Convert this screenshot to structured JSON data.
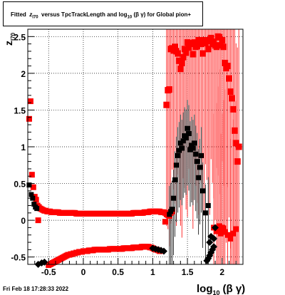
{
  "title": {
    "prefix": "Fitted",
    "var": "z",
    "var_sub": "I70",
    "mid": "versus TpcTrackLength and log",
    "log_sub": "10",
    "tail": "(β γ) for Global pion+"
  },
  "axes": {
    "x_label": "log",
    "x_label_sub": "10",
    "x_label_tail": "(β γ)",
    "y_label": "z",
    "y_label_sub": "I70"
  },
  "timestamp": "Fri Feb 18 17:28:33 2022",
  "colors": {
    "red": "#ff0000",
    "black": "#000000",
    "grid": "#000000"
  },
  "chart_data": {
    "type": "scatter",
    "title": "Fitted z_I70 versus TpcTrackLength and log10(β γ) for Global pion+",
    "xlabel": "log10(β γ)",
    "ylabel": "z_I70",
    "xlim": [
      -0.8,
      2.3
    ],
    "ylim": [
      -0.6,
      2.6
    ],
    "grid": true,
    "x_ticks": [
      -0.5,
      0,
      0.5,
      1,
      1.5,
      2
    ],
    "x_tick_labels": [
      "-0.5",
      "0",
      "0.5",
      "1",
      "1.5",
      "2"
    ],
    "y_ticks": [
      -0.5,
      0,
      0.5,
      1,
      1.5,
      2,
      2.5
    ],
    "y_tick_labels": [
      "-0.5",
      "0",
      "0.5",
      "1",
      "1.5",
      "2",
      "2.5"
    ],
    "series": [
      {
        "marker": "red-square-upper",
        "points": [
          [
            -0.78,
            1.38
          ],
          [
            -0.76,
            1.62
          ],
          [
            -0.74,
            0.62
          ],
          [
            -0.72,
            0.45
          ],
          [
            -0.7,
            0.32
          ],
          [
            -0.68,
            0.28
          ],
          [
            -0.66,
            0.2
          ],
          [
            -0.64,
            0.18
          ],
          [
            -0.62,
            0.16
          ],
          [
            -0.6,
            0.15
          ],
          [
            -0.58,
            0.14
          ],
          [
            -0.56,
            0.13
          ],
          [
            -0.54,
            0.13
          ],
          [
            -0.52,
            0.12
          ],
          [
            -0.5,
            0.12
          ],
          [
            -0.48,
            0.12
          ],
          [
            -0.46,
            0.11
          ],
          [
            -0.44,
            0.11
          ],
          [
            -0.42,
            0.11
          ],
          [
            -0.4,
            0.11
          ],
          [
            -0.38,
            0.11
          ],
          [
            -0.36,
            0.11
          ],
          [
            -0.34,
            0.1
          ],
          [
            -0.32,
            0.1
          ],
          [
            -0.3,
            0.1
          ],
          [
            -0.28,
            0.1
          ],
          [
            -0.26,
            0.1
          ],
          [
            -0.24,
            0.1
          ],
          [
            -0.22,
            0.1
          ],
          [
            -0.2,
            0.1
          ],
          [
            -0.18,
            0.1
          ],
          [
            -0.16,
            0.1
          ],
          [
            -0.14,
            0.1
          ],
          [
            -0.12,
            0.1
          ],
          [
            -0.1,
            0.09
          ],
          [
            -0.08,
            0.09
          ],
          [
            -0.06,
            0.09
          ],
          [
            -0.04,
            0.09
          ],
          [
            -0.02,
            0.09
          ],
          [
            0.0,
            0.09
          ],
          [
            0.02,
            0.09
          ],
          [
            0.04,
            0.09
          ],
          [
            0.06,
            0.09
          ],
          [
            0.08,
            0.09
          ],
          [
            0.1,
            0.09
          ],
          [
            0.12,
            0.09
          ],
          [
            0.14,
            0.09
          ],
          [
            0.16,
            0.09
          ],
          [
            0.18,
            0.09
          ],
          [
            0.2,
            0.09
          ],
          [
            0.22,
            0.09
          ],
          [
            0.24,
            0.09
          ],
          [
            0.26,
            0.09
          ],
          [
            0.28,
            0.09
          ],
          [
            0.3,
            0.09
          ],
          [
            0.32,
            0.09
          ],
          [
            0.34,
            0.09
          ],
          [
            0.36,
            0.09
          ],
          [
            0.38,
            0.09
          ],
          [
            0.4,
            0.09
          ],
          [
            0.42,
            0.09
          ],
          [
            0.44,
            0.09
          ],
          [
            0.46,
            0.09
          ],
          [
            0.48,
            0.09
          ],
          [
            0.5,
            0.09
          ],
          [
            0.52,
            0.09
          ],
          [
            0.54,
            0.09
          ],
          [
            0.56,
            0.09
          ],
          [
            0.58,
            0.09
          ],
          [
            0.6,
            0.09
          ],
          [
            0.62,
            0.09
          ],
          [
            0.64,
            0.09
          ],
          [
            0.66,
            0.09
          ],
          [
            0.68,
            0.09
          ],
          [
            0.7,
            0.09
          ],
          [
            0.72,
            0.1
          ],
          [
            0.74,
            0.1
          ],
          [
            0.76,
            0.1
          ],
          [
            0.78,
            0.1
          ],
          [
            0.8,
            0.1
          ],
          [
            0.82,
            0.1
          ],
          [
            0.84,
            0.1
          ],
          [
            0.86,
            0.1
          ],
          [
            0.88,
            0.11
          ],
          [
            0.9,
            0.11
          ],
          [
            0.92,
            0.11
          ],
          [
            0.94,
            0.11
          ],
          [
            0.96,
            0.12
          ],
          [
            0.98,
            0.12
          ],
          [
            1.0,
            0.12
          ],
          [
            1.02,
            0.12
          ],
          [
            1.04,
            0.12
          ],
          [
            1.06,
            0.12
          ],
          [
            1.08,
            0.12
          ],
          [
            1.1,
            0.12
          ],
          [
            1.12,
            0.11
          ],
          [
            1.14,
            0.11
          ],
          [
            1.16,
            0.11
          ],
          [
            1.18,
            0.1
          ],
          [
            1.2,
            0.08
          ],
          [
            1.22,
            0.07
          ],
          [
            1.24,
            0.06
          ],
          [
            1.26,
            0.1
          ],
          [
            1.28,
            0.12
          ],
          [
            -0.65,
            0.0
          ],
          [
            1.18,
            -0.02
          ]
        ]
      },
      {
        "marker": "red-square-outlier",
        "points": [
          [
            1.2,
            1.57
          ],
          [
            1.22,
            1.77
          ],
          [
            1.24,
            1.78
          ],
          [
            1.26,
            2.33
          ],
          [
            1.28,
            2.34
          ],
          [
            1.3,
            2.31
          ],
          [
            1.32,
            2.36
          ],
          [
            1.34,
            2.3
          ],
          [
            1.36,
            2.27
          ],
          [
            1.38,
            2.17
          ],
          [
            1.4,
            2.06
          ],
          [
            1.42,
            2.14
          ],
          [
            1.44,
            2.22
          ],
          [
            1.46,
            2.33
          ],
          [
            1.48,
            2.28
          ],
          [
            1.5,
            2.42
          ],
          [
            1.52,
            2.35
          ],
          [
            1.54,
            2.4
          ],
          [
            1.56,
            2.41
          ],
          [
            1.58,
            2.26
          ],
          [
            1.6,
            2.42
          ],
          [
            1.62,
            2.36
          ],
          [
            1.64,
            2.37
          ],
          [
            1.66,
            2.45
          ],
          [
            1.68,
            2.44
          ],
          [
            1.7,
            2.4
          ],
          [
            1.72,
            2.27
          ],
          [
            1.74,
            2.45
          ],
          [
            1.76,
            2.41
          ],
          [
            1.78,
            2.44
          ],
          [
            1.8,
            2.33
          ],
          [
            1.82,
            2.45
          ],
          [
            1.84,
            2.48
          ],
          [
            1.86,
            2.4
          ],
          [
            1.88,
            2.43
          ],
          [
            1.9,
            2.38
          ],
          [
            1.92,
            2.36
          ],
          [
            1.94,
            2.5
          ],
          [
            1.96,
            2.49
          ],
          [
            1.98,
            2.38
          ],
          [
            2.0,
            2.45
          ],
          [
            2.02,
            2.36
          ],
          [
            2.04,
            2.14
          ],
          [
            2.06,
            2.07
          ],
          [
            2.08,
            2.1
          ],
          [
            2.1,
            1.93
          ],
          [
            2.12,
            1.75
          ],
          [
            2.14,
            1.66
          ],
          [
            2.16,
            1.51
          ],
          [
            2.18,
            1.22
          ],
          [
            2.2,
            1.05
          ],
          [
            2.22,
            0.8
          ],
          [
            2.24,
            1.0
          ]
        ]
      },
      {
        "marker": "red-square-lower",
        "points": [
          [
            -0.5,
            -0.61
          ],
          [
            -0.48,
            -0.6
          ],
          [
            -0.46,
            -0.59
          ],
          [
            -0.44,
            -0.58
          ],
          [
            -0.42,
            -0.57
          ],
          [
            -0.4,
            -0.56
          ],
          [
            -0.38,
            -0.55
          ],
          [
            -0.36,
            -0.54
          ],
          [
            -0.34,
            -0.53
          ],
          [
            -0.32,
            -0.52
          ],
          [
            -0.3,
            -0.51
          ],
          [
            -0.28,
            -0.5
          ],
          [
            -0.26,
            -0.49
          ],
          [
            -0.24,
            -0.48
          ],
          [
            -0.22,
            -0.47
          ],
          [
            -0.2,
            -0.47
          ],
          [
            -0.18,
            -0.46
          ],
          [
            -0.16,
            -0.46
          ],
          [
            -0.14,
            -0.45
          ],
          [
            -0.12,
            -0.45
          ],
          [
            -0.1,
            -0.44
          ],
          [
            -0.08,
            -0.44
          ],
          [
            -0.06,
            -0.43
          ],
          [
            -0.04,
            -0.43
          ],
          [
            -0.02,
            -0.43
          ],
          [
            0.0,
            -0.42
          ],
          [
            0.02,
            -0.42
          ],
          [
            0.04,
            -0.42
          ],
          [
            0.06,
            -0.42
          ],
          [
            0.08,
            -0.41
          ],
          [
            0.1,
            -0.41
          ],
          [
            0.12,
            -0.41
          ],
          [
            0.14,
            -0.41
          ],
          [
            0.16,
            -0.4
          ],
          [
            0.18,
            -0.4
          ],
          [
            0.2,
            -0.4
          ],
          [
            0.22,
            -0.4
          ],
          [
            0.24,
            -0.4
          ],
          [
            0.26,
            -0.4
          ],
          [
            0.28,
            -0.4
          ],
          [
            0.3,
            -0.4
          ],
          [
            0.32,
            -0.4
          ],
          [
            0.34,
            -0.4
          ],
          [
            0.36,
            -0.4
          ],
          [
            0.38,
            -0.39
          ],
          [
            0.4,
            -0.39
          ],
          [
            0.42,
            -0.39
          ],
          [
            0.44,
            -0.39
          ],
          [
            0.46,
            -0.39
          ],
          [
            0.48,
            -0.39
          ],
          [
            0.5,
            -0.39
          ],
          [
            0.52,
            -0.39
          ],
          [
            0.54,
            -0.39
          ],
          [
            0.56,
            -0.39
          ],
          [
            0.58,
            -0.38
          ],
          [
            0.6,
            -0.38
          ],
          [
            0.62,
            -0.38
          ],
          [
            0.64,
            -0.38
          ],
          [
            0.66,
            -0.38
          ],
          [
            0.68,
            -0.38
          ],
          [
            0.7,
            -0.38
          ],
          [
            0.72,
            -0.37
          ],
          [
            0.74,
            -0.37
          ],
          [
            0.76,
            -0.37
          ],
          [
            0.78,
            -0.37
          ],
          [
            0.8,
            -0.37
          ],
          [
            0.82,
            -0.37
          ],
          [
            0.84,
            -0.36
          ],
          [
            0.86,
            -0.36
          ],
          [
            0.88,
            -0.36
          ],
          [
            0.9,
            -0.36
          ],
          [
            0.92,
            -0.36
          ],
          [
            0.94,
            -0.36
          ],
          [
            0.96,
            -0.37
          ],
          [
            0.98,
            -0.37
          ],
          [
            1.0,
            -0.38
          ],
          [
            1.02,
            -0.39
          ],
          [
            1.04,
            -0.4
          ],
          [
            1.06,
            -0.4
          ],
          [
            1.08,
            -0.41
          ],
          [
            1.1,
            -0.42
          ],
          [
            1.88,
            -0.1
          ],
          [
            1.92,
            -0.15
          ],
          [
            1.94,
            -0.12
          ],
          [
            1.96,
            -0.08
          ],
          [
            1.98,
            -0.18
          ],
          [
            2.0,
            -0.1
          ],
          [
            2.02,
            -0.11
          ],
          [
            2.04,
            -0.16
          ],
          [
            2.08,
            -0.2
          ],
          [
            2.12,
            -0.25
          ],
          [
            2.16,
            -0.18
          ],
          [
            2.2,
            -0.12
          ]
        ]
      },
      {
        "marker": "black-square",
        "points": [
          [
            -0.78,
            0.48
          ],
          [
            -0.75,
            0.35
          ],
          [
            -0.73,
            0.3
          ],
          [
            -0.71,
            0.22
          ],
          [
            -0.69,
            0.18
          ],
          [
            -0.67,
            0.16
          ],
          [
            1.24,
            0.08
          ],
          [
            1.26,
            0.12
          ],
          [
            1.28,
            0.15
          ],
          [
            1.3,
            0.3
          ],
          [
            1.32,
            0.55
          ],
          [
            1.34,
            0.75
          ],
          [
            1.36,
            0.88
          ],
          [
            1.38,
            0.95
          ],
          [
            1.4,
            1.05
          ],
          [
            1.42,
            0.98
          ],
          [
            1.44,
            1.08
          ],
          [
            1.46,
            1.15
          ],
          [
            1.48,
            1.12
          ],
          [
            1.5,
            1.25
          ],
          [
            1.52,
            1.18
          ],
          [
            1.54,
            0.96
          ],
          [
            1.56,
            1.02
          ],
          [
            1.58,
            0.98
          ],
          [
            1.6,
            1.05
          ],
          [
            1.62,
            0.9
          ],
          [
            1.64,
            0.8
          ],
          [
            1.66,
            0.58
          ],
          [
            1.68,
            0.72
          ],
          [
            1.7,
            0.88
          ],
          [
            1.72,
            0.4
          ],
          [
            1.76,
            0.1
          ],
          [
            1.8,
            0.2
          ]
        ]
      },
      {
        "marker": "black-diamond",
        "points": [
          [
            -0.74,
            -0.63
          ],
          [
            -0.7,
            -0.62
          ],
          [
            -0.65,
            -0.6
          ],
          [
            -0.6,
            -0.58
          ],
          [
            -0.56,
            -0.57
          ],
          [
            1.0,
            -0.38
          ],
          [
            1.04,
            -0.39
          ],
          [
            1.08,
            -0.4
          ],
          [
            1.12,
            -0.41
          ],
          [
            1.16,
            -0.42
          ],
          [
            1.8,
            -0.52
          ],
          [
            1.82,
            -0.48
          ],
          [
            1.84,
            -0.44
          ],
          [
            1.86,
            -0.4
          ],
          [
            1.88,
            -0.36
          ],
          [
            1.84,
            -0.22
          ],
          [
            1.88,
            -0.25
          ],
          [
            1.82,
            -0.3
          ],
          [
            1.9,
            -0.1
          ],
          [
            1.78,
            -0.55
          ]
        ]
      }
    ]
  }
}
